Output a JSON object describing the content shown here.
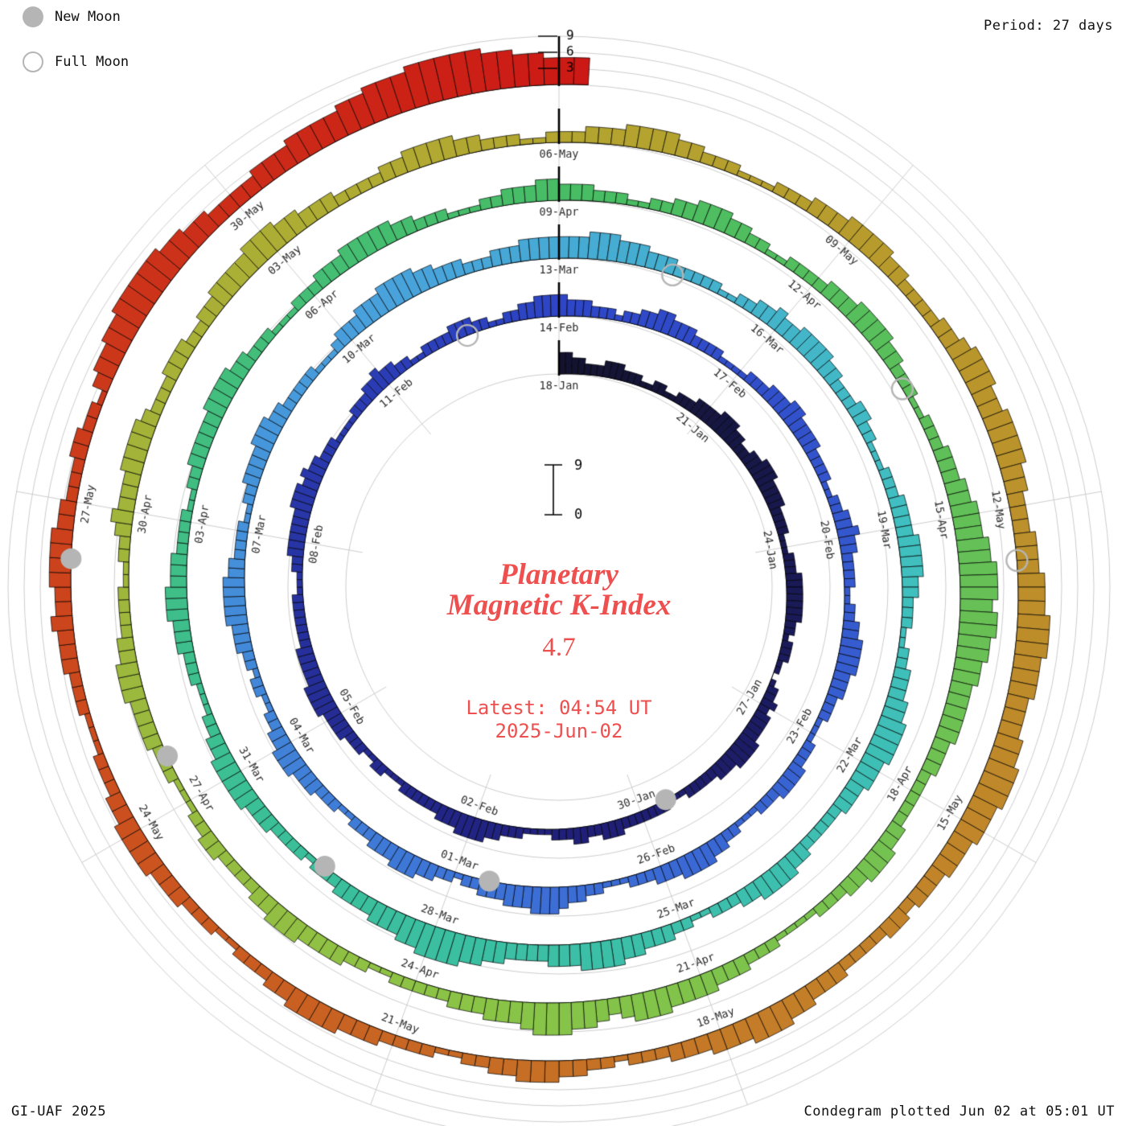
{
  "meta": {
    "period_label": "Period: 27 days",
    "credit": "GI-UAF 2025",
    "plotted_label": "Condegram plotted Jun 02 at 05:01 UT"
  },
  "legend": {
    "new_moon": "New Moon",
    "full_moon": "Full Moon"
  },
  "center": {
    "title_line1": "Planetary",
    "title_line2": "Magnetic K-Index",
    "current_value": "4.7",
    "latest_line1": "Latest: 04:54 UT",
    "latest_line2": "2025-Jun-02"
  },
  "chart_data": {
    "type": "bar",
    "layout": "spiral condegram, one revolution = 27 days, clockwise from top",
    "title": "Planetary Magnetic K-Index",
    "quantity": "Planetary magnetic K-index, one bar per 3-hour interval",
    "start_date": "2025-01-18",
    "end_date": "2025-06-02",
    "latest_value": 4.7,
    "days_per_revolution": 27,
    "values_per_day": 8,
    "value_range": [
      0,
      9
    ],
    "radial_scale_ticks": [
      3,
      6,
      9
    ],
    "center_scale": {
      "top": "9",
      "bottom": "0"
    },
    "values_encoding": "one digit per 3-hour interval (K index 0-9), one string per day",
    "rings": [
      {
        "start": "18-Jan",
        "labels": [
          "18-Jan",
          "21-Jan",
          "24-Jan",
          "27-Jan",
          "30-Jan",
          "02-Feb",
          "05-Feb",
          "08-Feb",
          "11-Feb"
        ],
        "days": [
          "44332223",
          "33222112",
          "21122233",
          "33444332",
          "23344433",
          "33222211",
          "12223333",
          "33322122",
          "21101223",
          "23333444",
          "43332222",
          "21112222",
          "22233322",
          "33222111",
          "12223344",
          "44333222",
          "22211122",
          "11222333",
          "34444333",
          "33222222",
          "21112233",
          "33334443",
          "43322211",
          "11222334",
          "33221122",
          "22333221",
          "12233444"
        ]
      },
      {
        "start": "14-Feb",
        "labels": [
          "14-Feb",
          "17-Feb",
          "20-Feb",
          "23-Feb",
          "26-Feb",
          "01-Mar",
          "04-Mar",
          "07-Mar",
          "10-Mar"
        ],
        "days": [
          "43332221",
          "22334433",
          "32222111",
          "12223334",
          "43333222",
          "21122334",
          "33222211",
          "22334444",
          "33322211",
          "12223333",
          "22211122",
          "33444433",
          "32221112",
          "23345554",
          "44333221",
          "22334443",
          "33222112",
          "22333444",
          "33221122",
          "12233344",
          "44433222",
          "21122333",
          "34443322",
          "22211123",
          "33444555",
          "54433322",
          "23334444"
        ]
      },
      {
        "start": "13-Mar",
        "labels": [
          "13-Mar",
          "16-Mar",
          "19-Mar",
          "22-Mar",
          "25-Mar",
          "28-Mar",
          "31-Mar",
          "03-Apr",
          "06-Apr"
        ],
        "days": [
          "44455544",
          "43332222",
          "21122334",
          "33444433",
          "22233221",
          "11222333",
          "34444332",
          "22112233",
          "34455554",
          "44333222",
          "22334444",
          "33222112",
          "23334455",
          "55444333",
          "34455666",
          "65544433",
          "33222122",
          "22333444",
          "44332211",
          "12223334",
          "44333222",
          "21122333",
          "33444433",
          "22211122",
          "23334444",
          "43322211",
          "12233344"
        ]
      },
      {
        "start": "09-Apr",
        "labels": [
          "09-Apr",
          "12-Apr",
          "15-Apr",
          "18-Apr",
          "21-Apr",
          "24-Apr",
          "27-Apr",
          "30-Apr",
          "03-May"
        ],
        "days": [
          "33322211",
          "22334443",
          "32211222",
          "23334444",
          "33222112",
          "22333445",
          "55667776",
          "77665544",
          "44433322",
          "22233444",
          "33222111",
          "12223334",
          "44455543",
          "45566654",
          "44333222",
          "22112233",
          "33444332",
          "22233221",
          "11222333",
          "34443322",
          "22112234",
          "33344443",
          "22233322",
          "33444455",
          "54433322",
          "22334444",
          "33222112"
        ]
      },
      {
        "start": "06-May",
        "labels": [
          "06-May",
          "09-May",
          "12-May",
          "15-May",
          "18-May",
          "21-May",
          "24-May",
          "27-May",
          "30-May"
        ],
        "days": [
          "22333444",
          "43322211",
          "12223334",
          "44433222",
          "23345554",
          "45555443",
          "33444555",
          "66655544",
          "45566655",
          "54443332",
          "33222233",
          "34455544",
          "43332221",
          "22334443",
          "32211222",
          "23334444",
          "33222112",
          "22333444",
          "43322211",
          "12223334",
          "33444433",
          "22233221",
          "34455666",
          "66554433",
          "33444555",
          "56677788",
          "88877665"
        ]
      },
      {
        "start": "02-Jun",
        "labels": [],
        "days": [
          "55"
        ]
      }
    ],
    "moons": [
      {
        "date": "2025-01-29",
        "type": "new",
        "t_days": 11.5
      },
      {
        "date": "2025-02-12",
        "type": "full",
        "t_days": 25.5
      },
      {
        "date": "2025-02-28",
        "type": "new",
        "t_days": 41.5
      },
      {
        "date": "2025-03-14",
        "type": "full",
        "t_days": 55.5
      },
      {
        "date": "2025-03-29",
        "type": "new",
        "t_days": 70.5
      },
      {
        "date": "2025-04-13",
        "type": "full",
        "t_days": 85.5
      },
      {
        "date": "2025-04-27",
        "type": "new",
        "t_days": 99.5
      },
      {
        "date": "2025-05-12",
        "type": "full",
        "t_days": 114.5
      },
      {
        "date": "2025-05-26",
        "type": "new",
        "t_days": 128.5
      }
    ],
    "colormap": [
      [
        0.0,
        "#131330"
      ],
      [
        0.1,
        "#20207c"
      ],
      [
        0.2,
        "#2e46c8"
      ],
      [
        0.3,
        "#3c6fd6"
      ],
      [
        0.38,
        "#49a2dc"
      ],
      [
        0.44,
        "#40bfc0"
      ],
      [
        0.52,
        "#3abf9a"
      ],
      [
        0.6,
        "#49bd62"
      ],
      [
        0.7,
        "#8ac447"
      ],
      [
        0.78,
        "#b0ab32"
      ],
      [
        0.82,
        "#b89a2c"
      ],
      [
        0.88,
        "#c47c28"
      ],
      [
        0.93,
        "#cc4e1e"
      ],
      [
        1.0,
        "#cc1414"
      ]
    ],
    "colors": {
      "bar_outline": "#000000",
      "grid": "#cccccc",
      "date_label": "#2b2b2b",
      "moon": "#b5b5b5",
      "accent_red": "#ee4f4f"
    }
  }
}
